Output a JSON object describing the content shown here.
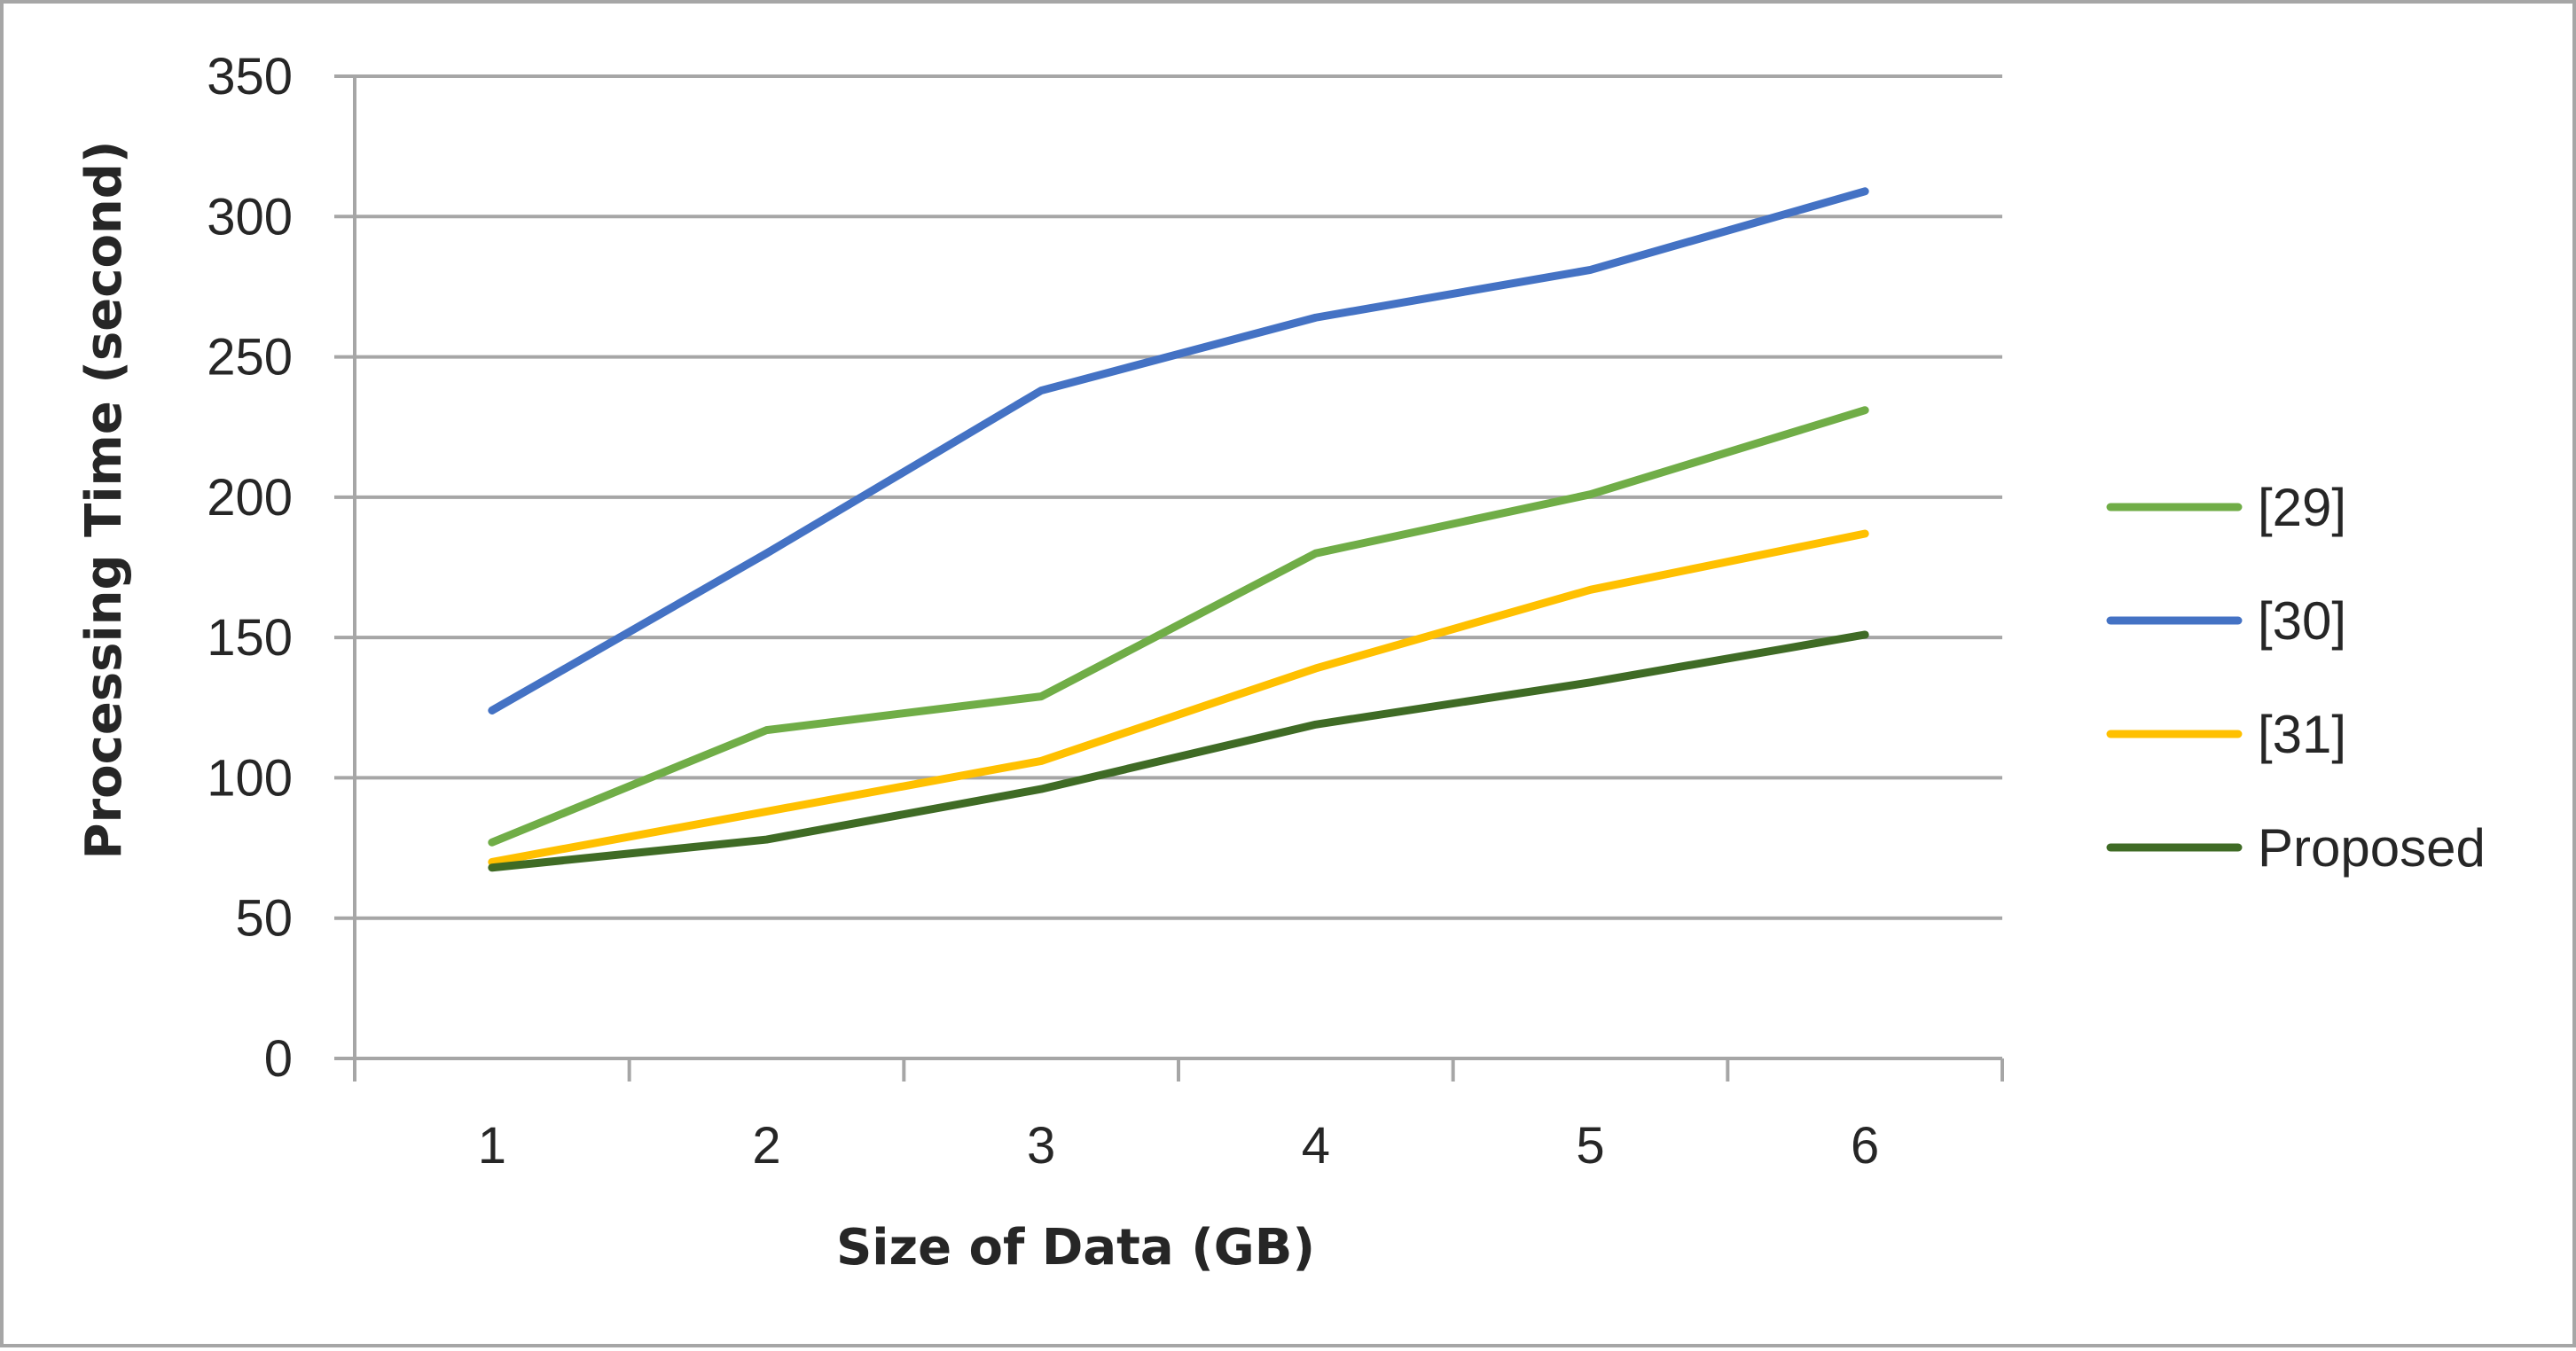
{
  "chart_data": {
    "type": "line",
    "title": "",
    "xlabel": "Size of Data (GB)",
    "ylabel": "Processing Time (second)",
    "categories": [
      "1",
      "2",
      "3",
      "4",
      "5",
      "6"
    ],
    "ylim": [
      0,
      350
    ],
    "yticks": [
      0,
      50,
      100,
      150,
      200,
      250,
      300,
      350
    ],
    "grid": true,
    "legend_position": "right",
    "series": [
      {
        "name": "[29]",
        "color": "#70ad47",
        "values": [
          77,
          117,
          129,
          180,
          201,
          231
        ]
      },
      {
        "name": "[30]",
        "color": "#4472c4",
        "values": [
          124,
          180,
          238,
          264,
          281,
          309
        ]
      },
      {
        "name": "[31]",
        "color": "#ffc000",
        "values": [
          70,
          88,
          106,
          139,
          167,
          187
        ]
      },
      {
        "name": "Proposed",
        "color": "#3f6b25",
        "values": [
          68,
          78,
          96,
          119,
          134,
          151
        ]
      }
    ]
  }
}
